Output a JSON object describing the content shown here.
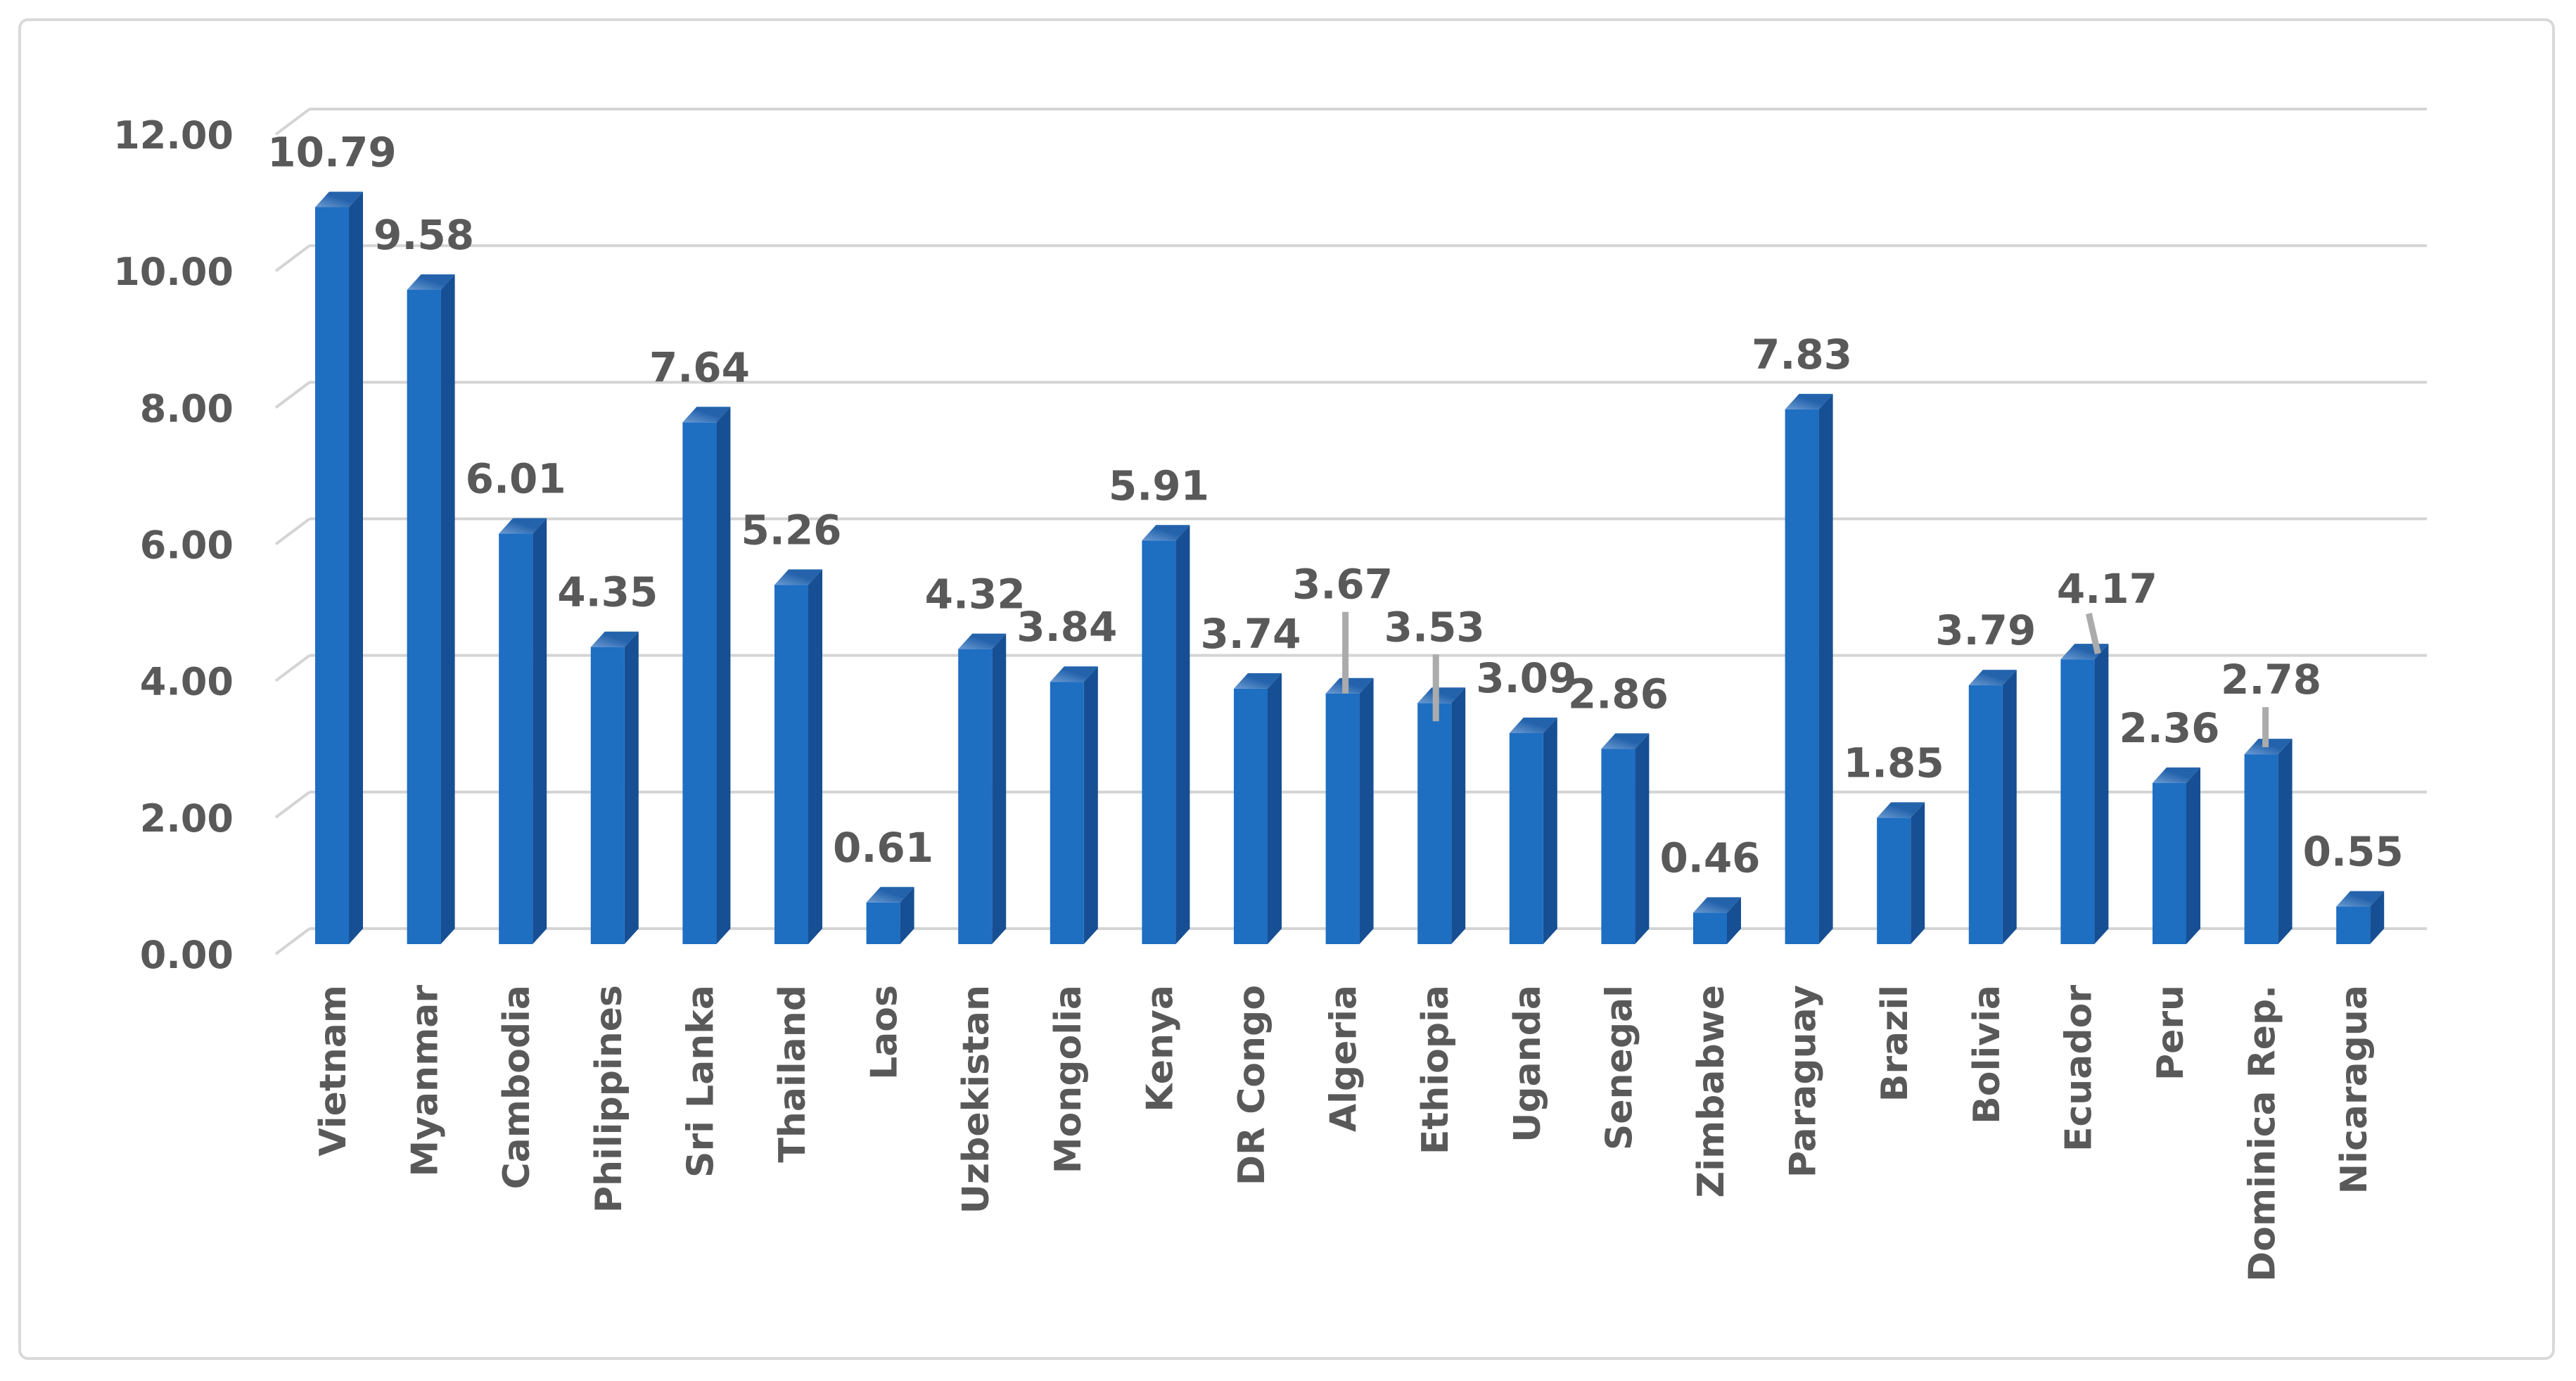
{
  "chart_data": {
    "type": "bar",
    "title": "",
    "xlabel": "",
    "ylabel": "",
    "categories": [
      "Vietnam",
      "Myanmar",
      "Cambodia",
      "Philippines",
      "Sri Lanka",
      "Thailand",
      "Laos",
      "Uzbekistan",
      "Mongolia",
      "Kenya",
      "DR Congo",
      "Algeria",
      "Ethiopia",
      "Uganda",
      "Senegal",
      "Zimbabwe",
      "Paraguay",
      "Brazil",
      "Bolivia",
      "Ecuador",
      "Peru",
      "Dominica Rep.",
      "Nicaragua"
    ],
    "values": [
      10.79,
      9.58,
      6.01,
      4.35,
      7.64,
      5.26,
      0.61,
      4.32,
      3.84,
      5.91,
      3.74,
      3.67,
      3.53,
      3.09,
      2.86,
      0.46,
      7.83,
      1.85,
      3.79,
      4.17,
      2.36,
      2.78,
      0.55
    ],
    "bar_labels": [
      "10.79",
      "9.58",
      "6.01",
      "4.35",
      "7.64",
      "5.26",
      "0.61",
      "4.32",
      "3.84",
      "5.91",
      "3.74",
      "3.67",
      "3.53",
      "3.09",
      "2.86",
      "0.46",
      "7.83",
      "1.85",
      "3.79",
      "4.17",
      "2.36",
      "2.78",
      "0.55"
    ],
    "ylim": [
      0,
      12
    ],
    "ytick_step": 2,
    "ytick_labels": [
      "0.00",
      "2.00",
      "4.00",
      "6.00",
      "8.00",
      "10.00",
      "12.00"
    ],
    "grid": true,
    "legend_position": "none",
    "style": "3d-column",
    "labels_with_leader_lines": [
      "Algeria",
      "Ethiopia",
      "Ecuador",
      "Dominica Rep."
    ],
    "colors": {
      "bar_front": "#1E6EC2",
      "bar_side": "#164F93",
      "bar_top": "#2463AC",
      "bar_top_highlight": "#6C9BD2",
      "gridline": "#D4D4D4",
      "value_label_text": "#595959",
      "axis_tick_text": "#595959",
      "category_text": "#595959",
      "leader_line": "#ABABAB",
      "frame_border": "#D9D9D9",
      "background": "#FFFFFF"
    }
  }
}
